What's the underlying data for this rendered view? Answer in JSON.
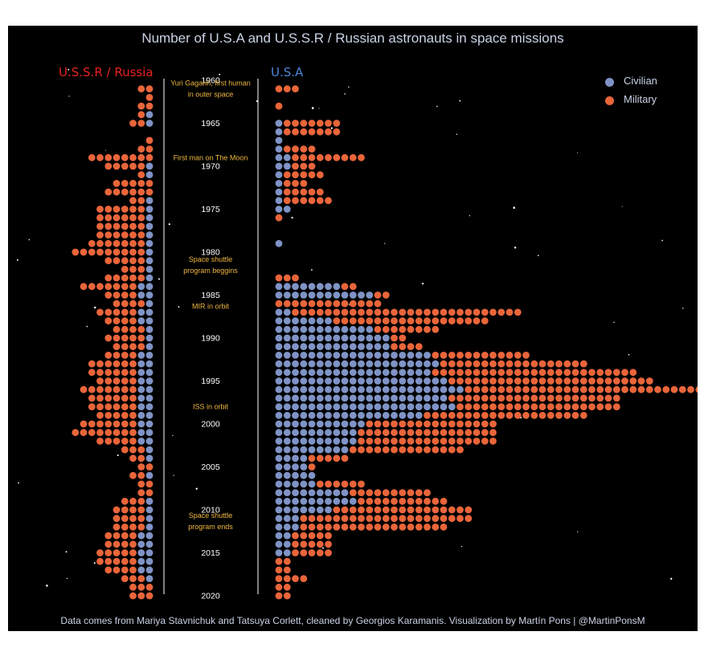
{
  "chart_data": {
    "type": "dot-plot",
    "title": "Number of  U.S.A and U.S.S.R / Russian astronauts in space missions",
    "left_label": "U.S.S.R / Russia",
    "right_label": "U.S.A",
    "caption": "Data comes from Mariya Stavnichuk and Tatsuya Corlett, cleaned by Georgios Karamanis. Visualization by Martín Pons | @MartinPonsM",
    "legend": [
      {
        "name": "Civilian",
        "color": "#7f93c6"
      },
      {
        "name": "Military",
        "color": "#e9653a"
      }
    ],
    "colors": {
      "background": "#000000",
      "ussr_label": "#e8221b",
      "usa_label": "#4f84d8",
      "event_text": "#f0b840"
    },
    "year_ticks": [
      "1960",
      "1965",
      "1970",
      "1975",
      "1980",
      "1985",
      "1990",
      "1995",
      "2000",
      "2005",
      "2010",
      "2015",
      "2020"
    ],
    "events": [
      {
        "year": 1961,
        "lines": [
          "Yuri Gagarin, first human",
          "in outer space"
        ]
      },
      {
        "year": 1969,
        "lines": [
          "First man on The Moon"
        ]
      },
      {
        "year": 1981.5,
        "lines": [
          "Space shuttle",
          "program beggins"
        ]
      },
      {
        "year": 1986.3,
        "lines": [
          "MIR in orbit"
        ]
      },
      {
        "year": 1998,
        "lines": [
          "ISS in orbit"
        ]
      },
      {
        "year": 2011.3,
        "lines": [
          "Space shuttle",
          "program ends"
        ]
      }
    ],
    "years": [
      1961,
      1962,
      1963,
      1964,
      1965,
      1966,
      1967,
      1968,
      1969,
      1970,
      1971,
      1972,
      1973,
      1974,
      1975,
      1976,
      1977,
      1978,
      1979,
      1980,
      1981,
      1982,
      1983,
      1984,
      1985,
      1986,
      1987,
      1988,
      1989,
      1990,
      1991,
      1992,
      1993,
      1994,
      1995,
      1996,
      1997,
      1998,
      1999,
      2000,
      2001,
      2002,
      2003,
      2004,
      2005,
      2006,
      2007,
      2008,
      2009,
      2010,
      2011,
      2012,
      2013,
      2014,
      2015,
      2016,
      2017,
      2018,
      2019,
      2020
    ],
    "ussr": {
      "civilian": [
        0,
        0,
        0,
        1,
        1,
        0,
        0,
        0,
        0,
        1,
        1,
        0,
        0,
        1,
        1,
        1,
        1,
        1,
        1,
        1,
        1,
        1,
        1,
        2,
        2,
        1,
        2,
        2,
        1,
        1,
        1,
        2,
        2,
        2,
        2,
        2,
        2,
        2,
        2,
        2,
        2,
        2,
        1,
        1,
        0,
        1,
        0,
        0,
        1,
        1,
        1,
        1,
        2,
        2,
        2,
        2,
        2,
        1,
        0,
        0
      ],
      "military": [
        2,
        1,
        2,
        1,
        2,
        0,
        1,
        2,
        8,
        5,
        1,
        5,
        6,
        2,
        6,
        6,
        6,
        6,
        7,
        9,
        5,
        3,
        5,
        7,
        4,
        4,
        5,
        4,
        4,
        5,
        4,
        4,
        6,
        6,
        5,
        7,
        6,
        6,
        5,
        7,
        8,
        5,
        3,
        2,
        2,
        2,
        2,
        2,
        3,
        4,
        4,
        4,
        4,
        4,
        5,
        5,
        4,
        3,
        3,
        3
      ]
    },
    "usa": {
      "civilian": [
        0,
        0,
        0,
        0,
        1,
        1,
        1,
        1,
        2,
        2,
        1,
        1,
        1,
        1,
        2,
        0,
        0,
        0,
        1,
        0,
        0,
        0,
        0,
        8,
        12,
        0,
        2,
        7,
        12,
        14,
        14,
        19,
        20,
        19,
        21,
        23,
        21,
        22,
        18,
        11,
        10,
        10,
        9,
        4,
        4,
        5,
        5,
        9,
        10,
        7,
        3,
        3,
        2,
        2,
        2,
        0,
        0,
        0,
        0,
        0
      ],
      "military": [
        3,
        0,
        1,
        0,
        7,
        7,
        0,
        4,
        9,
        3,
        5,
        3,
        5,
        6,
        0,
        1,
        0,
        0,
        0,
        0,
        0,
        0,
        3,
        2,
        2,
        13,
        28,
        19,
        8,
        2,
        4,
        12,
        18,
        25,
        25,
        32,
        21,
        20,
        20,
        16,
        17,
        17,
        14,
        5,
        1,
        0,
        6,
        10,
        11,
        17,
        21,
        18,
        5,
        5,
        5,
        2,
        2,
        4,
        2,
        2
      ]
    }
  }
}
